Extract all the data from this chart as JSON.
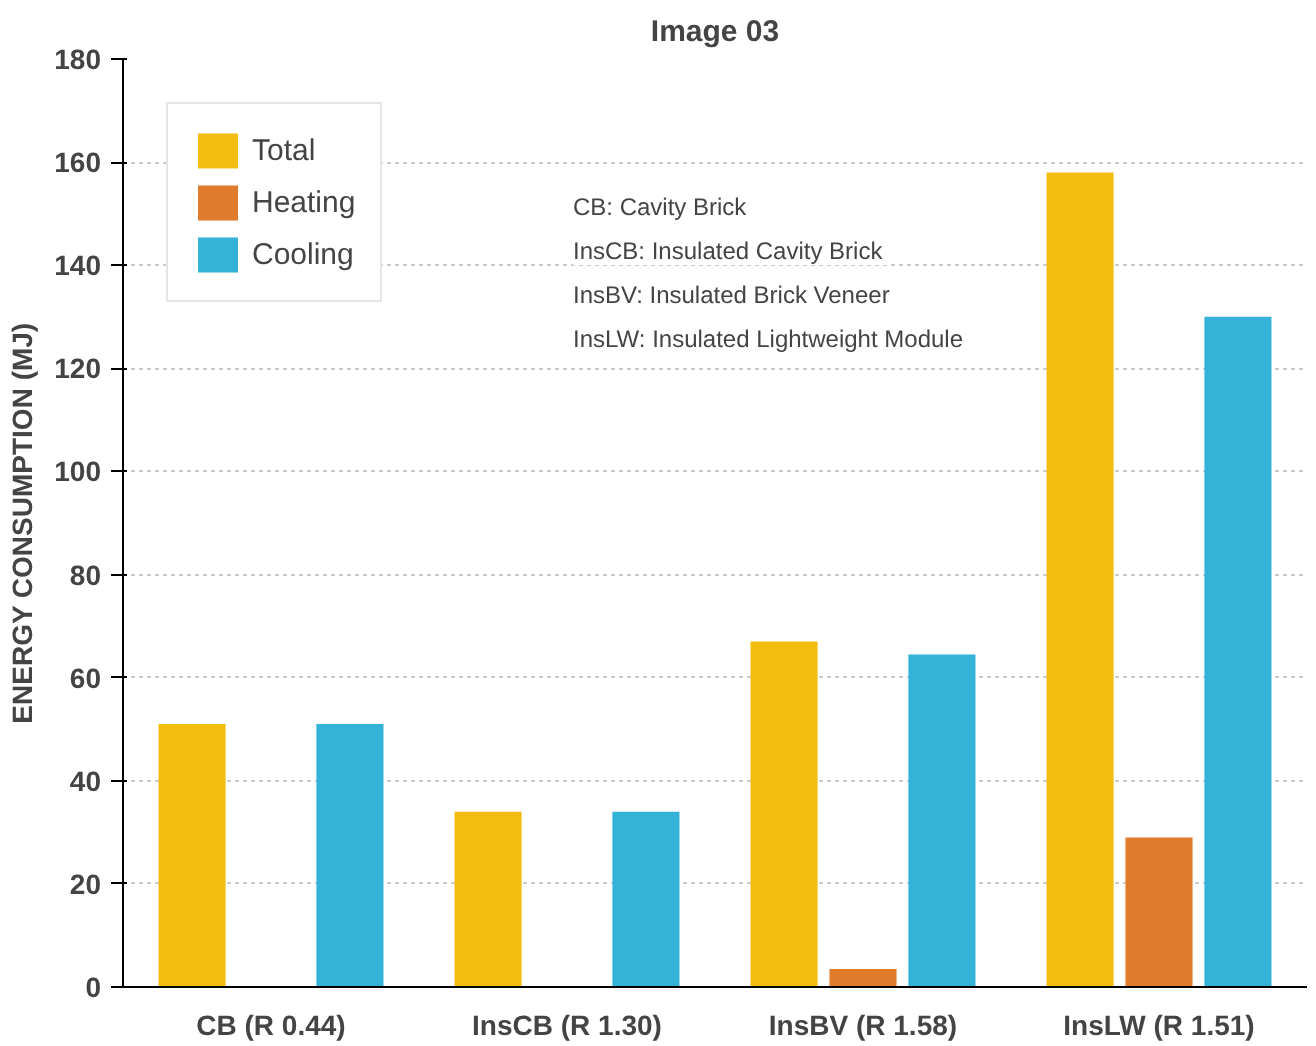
{
  "chart_data": {
    "type": "bar",
    "title": "Image 03",
    "ylabel": "ENERGY CONSUMPTION (MJ)",
    "categories": [
      "CB (R 0.44)",
      "InsCB (R 1.30)",
      "InsBV (R 1.58)",
      "InsLW (R 1.51)"
    ],
    "series": [
      {
        "name": "Total",
        "color": "#f2bd0f",
        "values": [
          51,
          34,
          67,
          158
        ]
      },
      {
        "name": "Heating",
        "color": "#e07b2c",
        "values": [
          null,
          null,
          3.5,
          29
        ]
      },
      {
        "name": "Cooling",
        "color": "#35b2d8",
        "values": [
          51,
          34,
          64.5,
          130
        ]
      }
    ],
    "ylim": [
      0,
      180
    ],
    "yticks": [
      0,
      20,
      40,
      60,
      80,
      100,
      120,
      140,
      160,
      180
    ],
    "grid": "y",
    "legend": "top left",
    "annotations": [
      "CB:      Cavity Brick",
      "InsCB:  Insulated Cavity Brick",
      "InsBV:  Insulated Brick Veneer",
      "InsLW:  Insulated Lightweight Module"
    ]
  }
}
